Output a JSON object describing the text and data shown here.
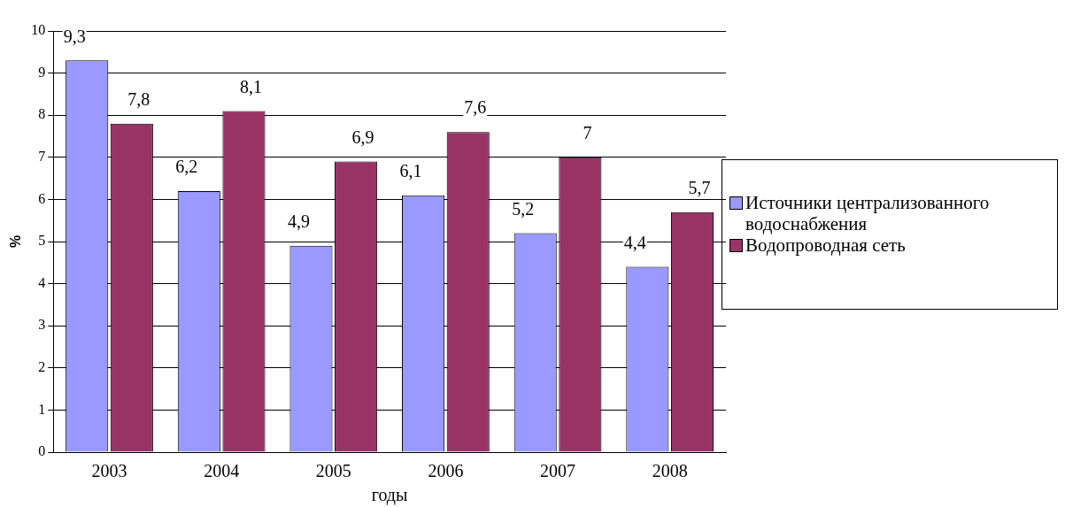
{
  "chart_data": {
    "type": "bar",
    "xlabel": "годы",
    "ylabel": "%",
    "categories": [
      "2003",
      "2004",
      "2005",
      "2006",
      "2007",
      "2008"
    ],
    "series": [
      {
        "name": "Источники централизованного водоснабжения",
        "color": "#9999ff",
        "values": [
          9.3,
          6.2,
          4.9,
          6.1,
          5.2,
          4.4
        ],
        "value_labels": [
          "9,3",
          "6,2",
          "4,9",
          "6,1",
          "5,2",
          "4,4"
        ]
      },
      {
        "name": "Водопроводная сеть",
        "color": "#993366",
        "values": [
          7.8,
          8.1,
          6.9,
          7.6,
          7,
          5.7
        ],
        "value_labels": [
          "7,8",
          "8,1",
          "6,9",
          "7,6",
          "7",
          "5,7"
        ]
      }
    ],
    "ylim": [
      0,
      10
    ],
    "yticks": [
      0,
      1,
      2,
      3,
      4,
      5,
      6,
      7,
      8,
      9,
      10
    ],
    "grid": "y",
    "legend": "right"
  }
}
